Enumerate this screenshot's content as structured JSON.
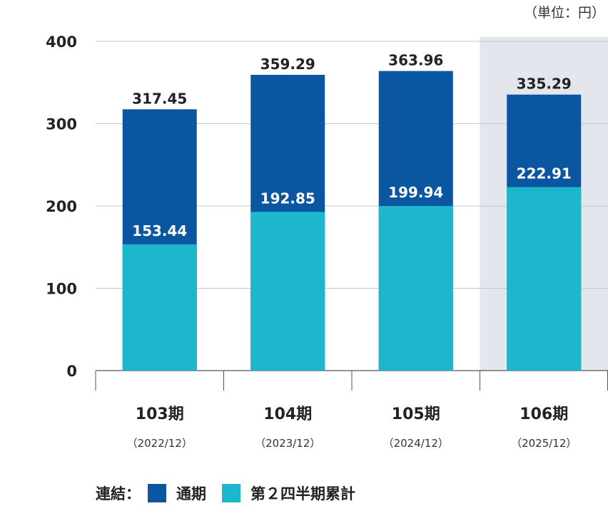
{
  "chart_data": {
    "type": "bar",
    "stacked": false,
    "unit_note": "（単位：円）",
    "categories": [
      "103期",
      "104期",
      "105期",
      "106期"
    ],
    "category_subtitles": [
      "（2022/12）",
      "（2023/12）",
      "（2024/12）",
      "（2025/12）"
    ],
    "series": [
      {
        "name": "通期",
        "values": [
          317.45,
          359.29,
          363.96,
          335.29
        ]
      },
      {
        "name": "第２四半期累計",
        "values": [
          153.44,
          192.85,
          199.94,
          222.91
        ]
      }
    ],
    "ylim": [
      0,
      400
    ],
    "yticks": [
      0,
      100,
      200,
      300,
      400
    ],
    "grid": true,
    "highlighted_category": "106期",
    "legend_position": "bottom",
    "legend_prefix": "連結："
  },
  "colors": {
    "full_year": "#0a56a0",
    "half_year": "#1cb6cd",
    "highlight_bg": "#e3e6ec",
    "grid": "#c8c8c8",
    "axis": "#555555"
  }
}
